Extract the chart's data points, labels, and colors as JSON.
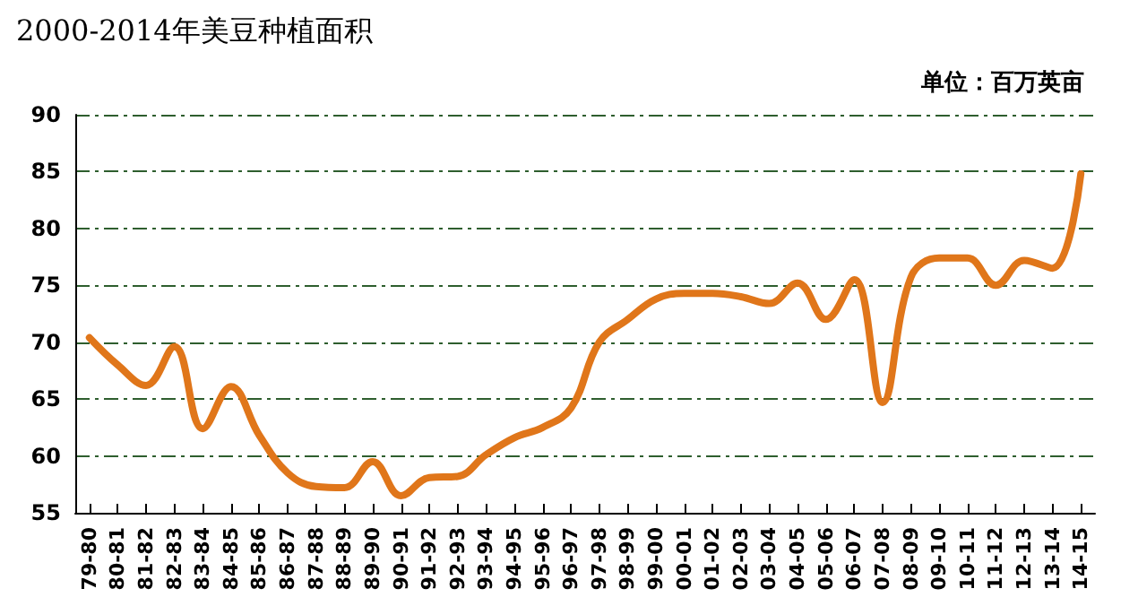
{
  "chart_data": {
    "type": "line",
    "title": "2000-2014年美豆种植面积",
    "annotations": [
      "单位：百万英亩"
    ],
    "categories": [
      "79-80",
      "80-81",
      "81-82",
      "82-83",
      "83-84",
      "84-85",
      "85-86",
      "86-87",
      "87-88",
      "88-89",
      "89-90",
      "90-91",
      "91-92",
      "92-93",
      "93-94",
      "94-95",
      "95-96",
      "96-97",
      "97-98",
      "98-99",
      "99-00",
      "00-01",
      "01-02",
      "02-03",
      "03-04",
      "04-05",
      "05-06",
      "06-07",
      "07-08",
      "08-09",
      "09-10",
      "10-11",
      "11-12",
      "12-13",
      "13-14",
      "14-15"
    ],
    "series": [
      {
        "color": "#e0761a",
        "values": [
          70.4,
          68,
          66.2,
          69.6,
          62.4,
          66.1,
          61.8,
          58.5,
          57.3,
          57.2,
          59.5,
          56.5,
          58.1,
          58.2,
          60.1,
          61.6,
          62.5,
          64.2,
          70.0,
          72.0,
          73.8,
          74.3,
          74.3,
          74.0,
          73.4,
          75.2,
          72.0,
          75.5,
          64.7,
          75.7,
          77.4,
          77.4,
          75.0,
          77.2,
          76.5,
          84.8
        ]
      }
    ],
    "ylim": [
      55,
      90
    ],
    "yticks": [
      55,
      60,
      65,
      70,
      75,
      80,
      85,
      90
    ],
    "grid": "y",
    "marker": "none",
    "line_style": "solid"
  }
}
